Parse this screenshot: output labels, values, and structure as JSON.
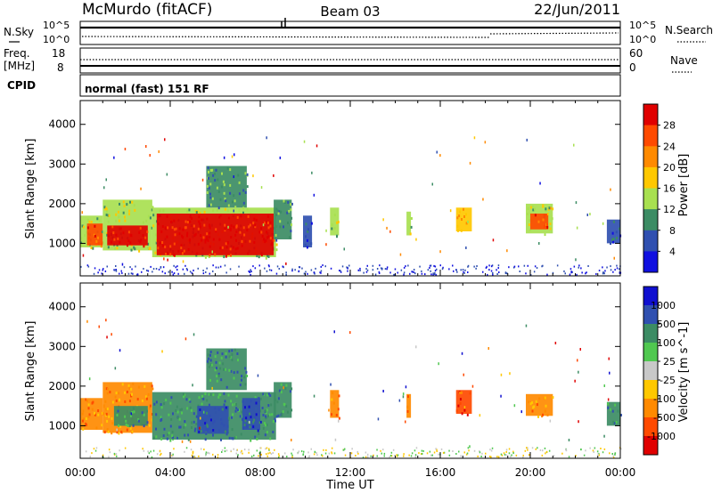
{
  "header": {
    "station": "McMurdo (fitACF)",
    "beam": "Beam 03",
    "date": "22/Jun/2011"
  },
  "summary_panels": {
    "nsky_label": "N.Sky",
    "nsearch_label": "N.Search",
    "noise_ticks": [
      "10^5",
      "10^0"
    ],
    "freq_label_1": "Freq.",
    "freq_label_2": "[MHz]",
    "freq_ticks": [
      "18",
      "8"
    ],
    "nave_label": "Nave",
    "nave_ticks": [
      "60",
      "0"
    ],
    "cpid_label": "CPID",
    "cpid_text": "normal (fast) 151 RF"
  },
  "chart_data": [
    {
      "type": "heatmap",
      "name": "power",
      "ylabel": "Slant Range [km]",
      "yticks": [
        1000,
        2000,
        3000,
        4000
      ],
      "ylim": [
        180,
        4600
      ],
      "xlim": [
        0,
        24
      ],
      "colorbar": {
        "label": "Power [dB]",
        "ticks": [
          "28",
          "24",
          "20",
          "16",
          "12",
          "8",
          "4"
        ],
        "colors": [
          "#e00000",
          "#ff4a00",
          "#ff8a00",
          "#ffc800",
          "#a8e050",
          "#3c8c64",
          "#3050b0",
          "#1010e0"
        ]
      },
      "regions": [
        {
          "t0": 0.0,
          "t1": 1.0,
          "r0": 900,
          "r1": 1700,
          "level": 4
        },
        {
          "t0": 0.3,
          "t1": 1.0,
          "r0": 950,
          "r1": 1500,
          "level": 1
        },
        {
          "t0": 1.0,
          "t1": 3.2,
          "r0": 820,
          "r1": 2100,
          "level": 4
        },
        {
          "t0": 1.2,
          "t1": 3.0,
          "r0": 950,
          "r1": 1450,
          "level": 0
        },
        {
          "t0": 3.2,
          "t1": 8.7,
          "r0": 650,
          "r1": 1900,
          "level": 4
        },
        {
          "t0": 3.4,
          "t1": 8.6,
          "r0": 700,
          "r1": 1750,
          "level": 0
        },
        {
          "t0": 5.6,
          "t1": 7.4,
          "r0": 1900,
          "r1": 2950,
          "level": 5
        },
        {
          "t0": 8.6,
          "t1": 9.4,
          "r0": 1100,
          "r1": 2100,
          "level": 5
        },
        {
          "t0": 9.9,
          "t1": 10.3,
          "r0": 900,
          "r1": 1700,
          "level": 6
        },
        {
          "t0": 11.1,
          "t1": 11.5,
          "r0": 1200,
          "r1": 1900,
          "level": 4
        },
        {
          "t0": 14.5,
          "t1": 14.7,
          "r0": 1200,
          "r1": 1800,
          "level": 4
        },
        {
          "t0": 16.7,
          "t1": 17.4,
          "r0": 1300,
          "r1": 1900,
          "level": 3
        },
        {
          "t0": 19.8,
          "t1": 21.0,
          "r0": 1250,
          "r1": 2000,
          "level": 4
        },
        {
          "t0": 20.0,
          "t1": 20.8,
          "r0": 1350,
          "r1": 1750,
          "level": 1
        },
        {
          "t0": 23.4,
          "t1": 24.0,
          "r0": 1000,
          "r1": 1600,
          "level": 6
        }
      ]
    },
    {
      "type": "heatmap",
      "name": "velocity",
      "ylabel": "Slant Range [km]",
      "yticks": [
        1000,
        2000,
        3000,
        4000
      ],
      "ylim": [
        180,
        4600
      ],
      "xlim": [
        0,
        24
      ],
      "xticks": [
        "00:00",
        "04:00",
        "08:00",
        "12:00",
        "16:00",
        "20:00",
        "00:00"
      ],
      "xlabel": "Time UT",
      "colorbar": {
        "label": "Velocity [m s^-1]",
        "ticks": [
          "1000",
          "500",
          "100",
          "25",
          "-25",
          "-100",
          "-500",
          "-1000"
        ],
        "colors": [
          "#1010d0",
          "#3050b0",
          "#3c8c64",
          "#50c850",
          "#c8c8c8",
          "#ffc800",
          "#ff8a00",
          "#ff4a00",
          "#e00000"
        ]
      },
      "regions": [
        {
          "t0": 0.0,
          "t1": 1.0,
          "r0": 900,
          "r1": 1700,
          "level": 6
        },
        {
          "t0": 1.0,
          "t1": 3.2,
          "r0": 820,
          "r1": 2100,
          "level": 6
        },
        {
          "t0": 1.5,
          "t1": 3.0,
          "r0": 1000,
          "r1": 1500,
          "level": 2
        },
        {
          "t0": 3.2,
          "t1": 8.7,
          "r0": 650,
          "r1": 1850,
          "level": 2
        },
        {
          "t0": 5.2,
          "t1": 6.6,
          "r0": 800,
          "r1": 1500,
          "level": 1
        },
        {
          "t0": 7.2,
          "t1": 8.0,
          "r0": 900,
          "r1": 1700,
          "level": 1
        },
        {
          "t0": 5.6,
          "t1": 7.4,
          "r0": 1900,
          "r1": 2950,
          "level": 2
        },
        {
          "t0": 8.6,
          "t1": 9.4,
          "r0": 1200,
          "r1": 2100,
          "level": 2
        },
        {
          "t0": 11.1,
          "t1": 11.5,
          "r0": 1200,
          "r1": 1900,
          "level": 6
        },
        {
          "t0": 14.5,
          "t1": 14.7,
          "r0": 1200,
          "r1": 1800,
          "level": 6
        },
        {
          "t0": 16.7,
          "t1": 17.4,
          "r0": 1300,
          "r1": 1900,
          "level": 7
        },
        {
          "t0": 19.8,
          "t1": 21.0,
          "r0": 1250,
          "r1": 1800,
          "level": 6
        },
        {
          "t0": 23.4,
          "t1": 24.0,
          "r0": 1000,
          "r1": 1600,
          "level": 2
        }
      ]
    }
  ]
}
